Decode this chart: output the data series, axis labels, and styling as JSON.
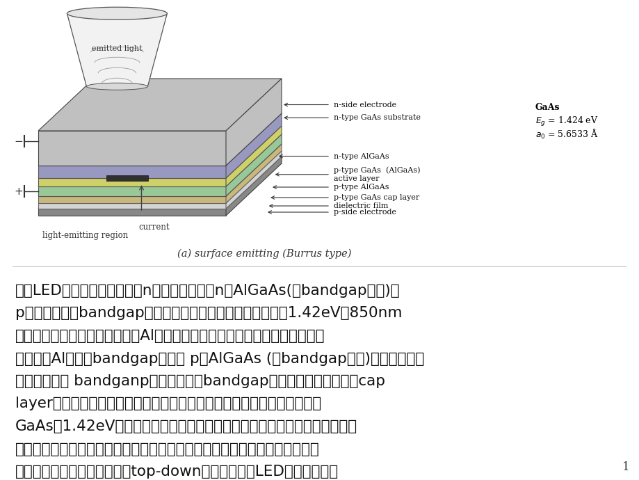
{
  "background_color": "#ffffff",
  "diagram_caption": "(a) surface emitting (Burrus type)",
  "diagram_caption_fontsize": 10,
  "inset_title": "GaAs",
  "inset_line1": "$E_g$ = 1.424 eV",
  "inset_line2": "$a_0$ = 5.6533 Å",
  "emitted_light_label": "emitted light",
  "current_label": "current",
  "light_emitting_label": "light-emitting region",
  "body_text_lines": [
    "红光LED结构：从上向下看，n型瞄化鎊基板、n型AlGaAs(大bandgap材料)、",
    "p型活跃层（小bandgap材料），即发光层，决定发光波长，1.42eV，850nm",
    "附近，红外范围，可以通过调整Al的含量，使之在红光范围发光；化合物半导",
    "体中增加Al，会使bandgap变大， p型AlGaAs (大bandgap材料)，器件为双异",
    "质结构，即小 bandganp材料夹在个大bandgap材料之间；随后是一层cap",
    "layer，介电层，电极。此图是长完累晶层后翻过来的结果，原因：基板是",
    "GaAs，1.42eV，发红外光，只要波长短于红外的光，它会吸收所有可见光，",
    "造成中间发光层发出的光全部被基板吸掉，至少有一半的光被吸掉，所以要翻",
    "过来，在基板上挖个洞，形成top-down方式。大部分LED都是面射型。"
  ],
  "page_number": "1"
}
